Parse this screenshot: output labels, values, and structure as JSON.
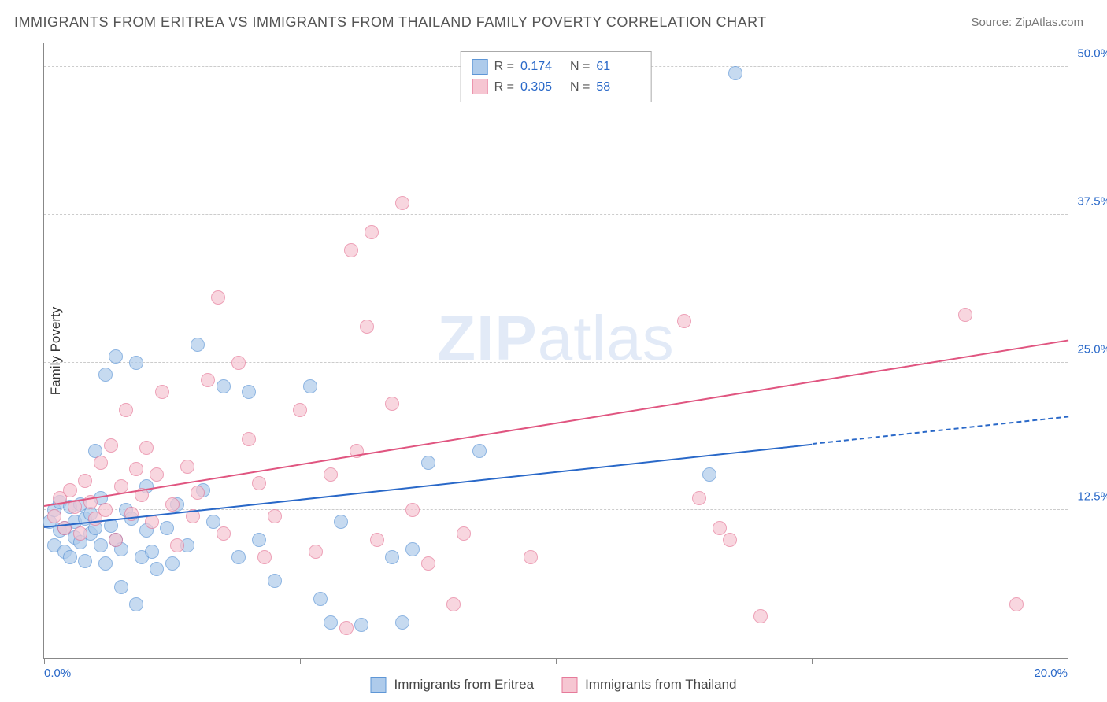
{
  "title": "IMMIGRANTS FROM ERITREA VS IMMIGRANTS FROM THAILAND FAMILY POVERTY CORRELATION CHART",
  "source": "Source: ZipAtlas.com",
  "ylabel": "Family Poverty",
  "watermark_a": "ZIP",
  "watermark_b": "atlas",
  "chart": {
    "type": "scatter",
    "xlim": [
      0,
      20
    ],
    "ylim": [
      0,
      52
    ],
    "xticks": [
      {
        "pos": 0,
        "label": "0.0%"
      },
      {
        "pos": 5,
        "label": ""
      },
      {
        "pos": 10,
        "label": ""
      },
      {
        "pos": 15,
        "label": ""
      },
      {
        "pos": 20,
        "label": "20.0%"
      }
    ],
    "yticks": [
      {
        "pos": 12.5,
        "label": "12.5%"
      },
      {
        "pos": 25.0,
        "label": "25.0%"
      },
      {
        "pos": 37.5,
        "label": "37.5%"
      },
      {
        "pos": 50.0,
        "label": "50.0%"
      }
    ],
    "grid_color": "#cccccc",
    "background_color": "#ffffff"
  },
  "series": [
    {
      "name": "Immigrants from Eritrea",
      "fill": "#aecbeb",
      "stroke": "#5e96d6",
      "line_color": "#2968c8",
      "R": "0.174",
      "N": "61",
      "reg_start": {
        "x": 0,
        "y": 11.2
      },
      "reg_solid_end": {
        "x": 15.0,
        "y": 18.2
      },
      "reg_dash_end": {
        "x": 20.0,
        "y": 20.5
      },
      "points": [
        [
          0.1,
          11.5
        ],
        [
          0.2,
          9.5
        ],
        [
          0.2,
          12.5
        ],
        [
          0.3,
          10.8
        ],
        [
          0.3,
          13.2
        ],
        [
          0.4,
          11.0
        ],
        [
          0.4,
          9.0
        ],
        [
          0.5,
          12.8
        ],
        [
          0.5,
          8.5
        ],
        [
          0.6,
          11.5
        ],
        [
          0.6,
          10.2
        ],
        [
          0.7,
          13.0
        ],
        [
          0.7,
          9.8
        ],
        [
          0.8,
          11.8
        ],
        [
          0.8,
          8.2
        ],
        [
          0.9,
          10.5
        ],
        [
          0.9,
          12.2
        ],
        [
          1.0,
          11.0
        ],
        [
          1.0,
          17.5
        ],
        [
          1.1,
          9.5
        ],
        [
          1.1,
          13.5
        ],
        [
          1.2,
          24.0
        ],
        [
          1.2,
          8.0
        ],
        [
          1.3,
          11.2
        ],
        [
          1.4,
          10.0
        ],
        [
          1.4,
          25.5
        ],
        [
          1.5,
          9.2
        ],
        [
          1.5,
          6.0
        ],
        [
          1.6,
          12.5
        ],
        [
          1.7,
          11.8
        ],
        [
          1.8,
          25.0
        ],
        [
          1.8,
          4.5
        ],
        [
          1.9,
          8.5
        ],
        [
          2.0,
          14.5
        ],
        [
          2.0,
          10.8
        ],
        [
          2.1,
          9.0
        ],
        [
          2.2,
          7.5
        ],
        [
          2.4,
          11.0
        ],
        [
          2.5,
          8.0
        ],
        [
          2.6,
          13.0
        ],
        [
          2.8,
          9.5
        ],
        [
          3.0,
          26.5
        ],
        [
          3.1,
          14.2
        ],
        [
          3.3,
          11.5
        ],
        [
          3.5,
          23.0
        ],
        [
          3.8,
          8.5
        ],
        [
          4.0,
          22.5
        ],
        [
          4.2,
          10.0
        ],
        [
          4.5,
          6.5
        ],
        [
          5.2,
          23.0
        ],
        [
          5.4,
          5.0
        ],
        [
          5.6,
          3.0
        ],
        [
          5.8,
          11.5
        ],
        [
          6.2,
          2.8
        ],
        [
          6.8,
          8.5
        ],
        [
          7.0,
          3.0
        ],
        [
          7.2,
          9.2
        ],
        [
          7.5,
          16.5
        ],
        [
          8.5,
          17.5
        ],
        [
          13.0,
          15.5
        ],
        [
          13.5,
          49.5
        ]
      ]
    },
    {
      "name": "Immigrants from Thailand",
      "fill": "#f6c6d2",
      "stroke": "#e67a9a",
      "line_color": "#e05580",
      "R": "0.305",
      "N": "58",
      "reg_start": {
        "x": 0,
        "y": 13.0
      },
      "reg_solid_end": {
        "x": 20.0,
        "y": 27.0
      },
      "reg_dash_end": null,
      "points": [
        [
          0.2,
          12.0
        ],
        [
          0.3,
          13.5
        ],
        [
          0.4,
          11.0
        ],
        [
          0.5,
          14.2
        ],
        [
          0.6,
          12.8
        ],
        [
          0.7,
          10.5
        ],
        [
          0.8,
          15.0
        ],
        [
          0.9,
          13.2
        ],
        [
          1.0,
          11.8
        ],
        [
          1.1,
          16.5
        ],
        [
          1.2,
          12.5
        ],
        [
          1.3,
          18.0
        ],
        [
          1.4,
          10.0
        ],
        [
          1.5,
          14.5
        ],
        [
          1.6,
          21.0
        ],
        [
          1.7,
          12.2
        ],
        [
          1.8,
          16.0
        ],
        [
          1.9,
          13.8
        ],
        [
          2.0,
          17.8
        ],
        [
          2.1,
          11.5
        ],
        [
          2.2,
          15.5
        ],
        [
          2.3,
          22.5
        ],
        [
          2.5,
          13.0
        ],
        [
          2.6,
          9.5
        ],
        [
          2.8,
          16.2
        ],
        [
          3.0,
          14.0
        ],
        [
          3.2,
          23.5
        ],
        [
          3.4,
          30.5
        ],
        [
          3.5,
          10.5
        ],
        [
          3.8,
          25.0
        ],
        [
          4.0,
          18.5
        ],
        [
          4.3,
          8.5
        ],
        [
          4.5,
          12.0
        ],
        [
          5.0,
          21.0
        ],
        [
          5.3,
          9.0
        ],
        [
          5.6,
          15.5
        ],
        [
          5.9,
          2.5
        ],
        [
          6.0,
          34.5
        ],
        [
          6.1,
          17.5
        ],
        [
          6.3,
          28.0
        ],
        [
          6.5,
          10.0
        ],
        [
          6.8,
          21.5
        ],
        [
          7.0,
          38.5
        ],
        [
          7.2,
          12.5
        ],
        [
          7.5,
          8.0
        ],
        [
          8.0,
          4.5
        ],
        [
          8.2,
          10.5
        ],
        [
          9.5,
          8.5
        ],
        [
          12.5,
          28.5
        ],
        [
          12.8,
          13.5
        ],
        [
          13.2,
          11.0
        ],
        [
          13.4,
          10.0
        ],
        [
          14.0,
          3.5
        ],
        [
          18.0,
          29.0
        ],
        [
          19.0,
          4.5
        ],
        [
          6.4,
          36.0
        ],
        [
          4.2,
          14.8
        ],
        [
          2.9,
          12.0
        ]
      ]
    }
  ],
  "legend_top_labels": {
    "R": "R  =",
    "N": "N  ="
  },
  "legend_bottom": {}
}
